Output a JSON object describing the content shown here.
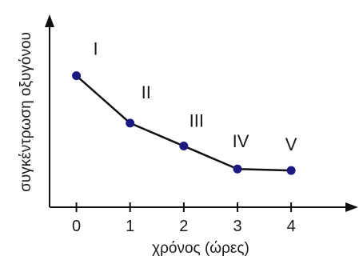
{
  "chart_data": {
    "type": "line",
    "xlabel": "χρόνος (ώρες)",
    "ylabel": "συγκέντρωση οξυγόνου",
    "x": [
      0,
      1,
      2,
      3,
      4
    ],
    "tick_labels": [
      "0",
      "1",
      "2",
      "3",
      "4"
    ],
    "series": [
      {
        "values": [
          72,
          41,
          26,
          11,
          10
        ]
      }
    ],
    "point_labels": [
      "I",
      "II",
      "III",
      "IV",
      "V"
    ],
    "xlim": [
      -0.5,
      5.1
    ],
    "ylim": [
      -14,
      110
    ],
    "y_ticks_shown": false,
    "grid": false,
    "legend": "none"
  },
  "colors": {
    "line": "#111111",
    "marker": "#1c1a80",
    "axis": "#111111",
    "text": "#1a1a1a"
  }
}
